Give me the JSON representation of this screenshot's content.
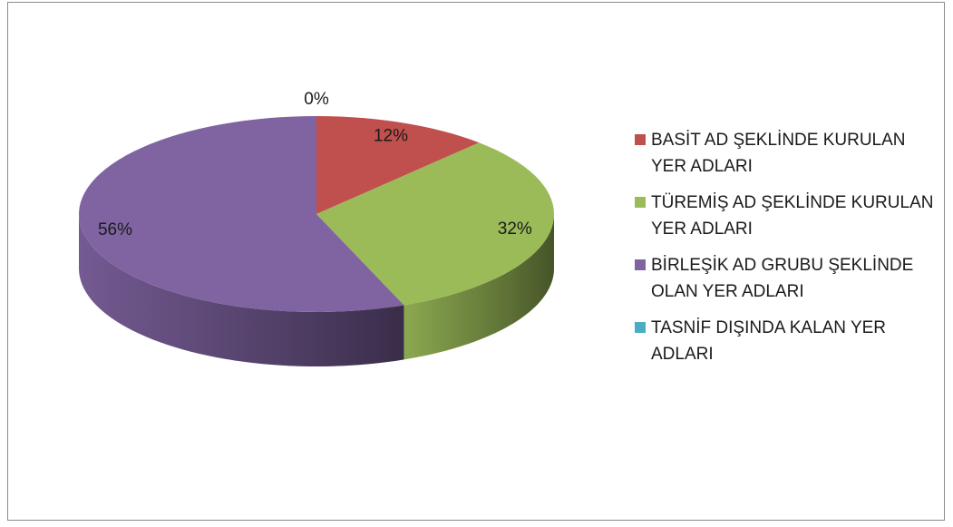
{
  "chart_data": {
    "type": "pie",
    "title": "",
    "slices": [
      {
        "name": "BASİT AD ŞEKLİNDE KURULAN YER ADLARI",
        "value": 12,
        "label": "12%",
        "color": "#c0504d"
      },
      {
        "name": "TÜREMİŞ AD ŞEKLİNDE KURULAN YER ADLARI",
        "value": 32,
        "label": "32%",
        "color": "#9bbb59"
      },
      {
        "name": "BİRLEŞİK AD GRUBU ŞEKLİNDE OLAN YER ADLARI",
        "value": 56,
        "label": "56%",
        "color": "#8064a2"
      },
      {
        "name": "TASNİF DIŞINDA KALAN YER ADLARI",
        "value": 0,
        "label": "0%",
        "color": "#4bacc6"
      }
    ],
    "legend_position": "right",
    "style": "3d"
  }
}
